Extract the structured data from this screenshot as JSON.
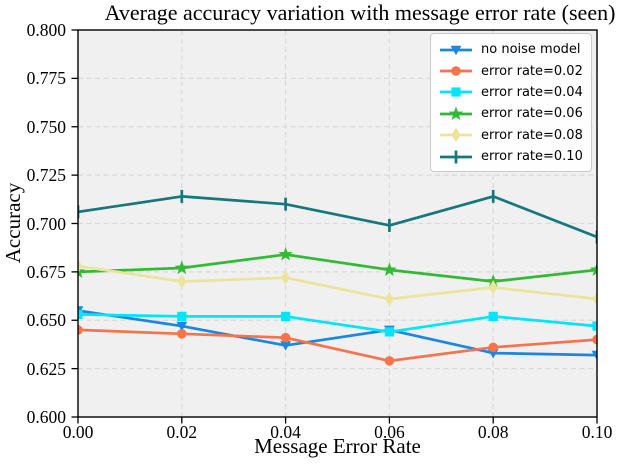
{
  "chart_data": {
    "type": "line",
    "title": "Average accuracy variation with message error rate (seen)",
    "xlabel": "Message Error Rate",
    "ylabel": "Accuracy",
    "xlim": [
      0.0,
      0.1
    ],
    "ylim": [
      0.6,
      0.8
    ],
    "grid": true,
    "legend_position": "upper right",
    "plot_bg_color": "#f0f0f0",
    "grid_color": "#d9d9d9",
    "axis_color": "#000000",
    "x": [
      0.0,
      0.02,
      0.04,
      0.06,
      0.08,
      0.1
    ],
    "x_tick_labels": [
      "0.00",
      "0.02",
      "0.04",
      "0.06",
      "0.08",
      "0.10"
    ],
    "y_ticks": [
      0.6,
      0.625,
      0.65,
      0.675,
      0.7,
      0.725,
      0.75,
      0.775,
      0.8
    ],
    "y_tick_labels": [
      "0.600",
      "0.625",
      "0.650",
      "0.675",
      "0.700",
      "0.725",
      "0.750",
      "0.775",
      "0.800"
    ],
    "series": [
      {
        "name": "no noise model",
        "color": "#1b87e0",
        "marker": "triangle-down",
        "values": [
          0.655,
          0.647,
          0.637,
          0.645,
          0.633,
          0.632
        ]
      },
      {
        "name": "error rate=0.02",
        "color": "#f5744c",
        "marker": "circle",
        "values": [
          0.645,
          0.643,
          0.641,
          0.629,
          0.636,
          0.64
        ]
      },
      {
        "name": "error rate=0.04",
        "color": "#00e5fa",
        "marker": "square",
        "values": [
          0.653,
          0.652,
          0.652,
          0.644,
          0.652,
          0.647
        ]
      },
      {
        "name": "error rate=0.06",
        "color": "#33ba35",
        "marker": "star",
        "values": [
          0.675,
          0.677,
          0.684,
          0.676,
          0.67,
          0.676
        ]
      },
      {
        "name": "error rate=0.08",
        "color": "#ebe49a",
        "marker": "diamond",
        "values": [
          0.678,
          0.67,
          0.672,
          0.661,
          0.667,
          0.661
        ]
      },
      {
        "name": "error rate=0.10",
        "color": "#16777c",
        "marker": "vline",
        "values": [
          0.706,
          0.714,
          0.71,
          0.699,
          0.714,
          0.693
        ]
      }
    ]
  }
}
